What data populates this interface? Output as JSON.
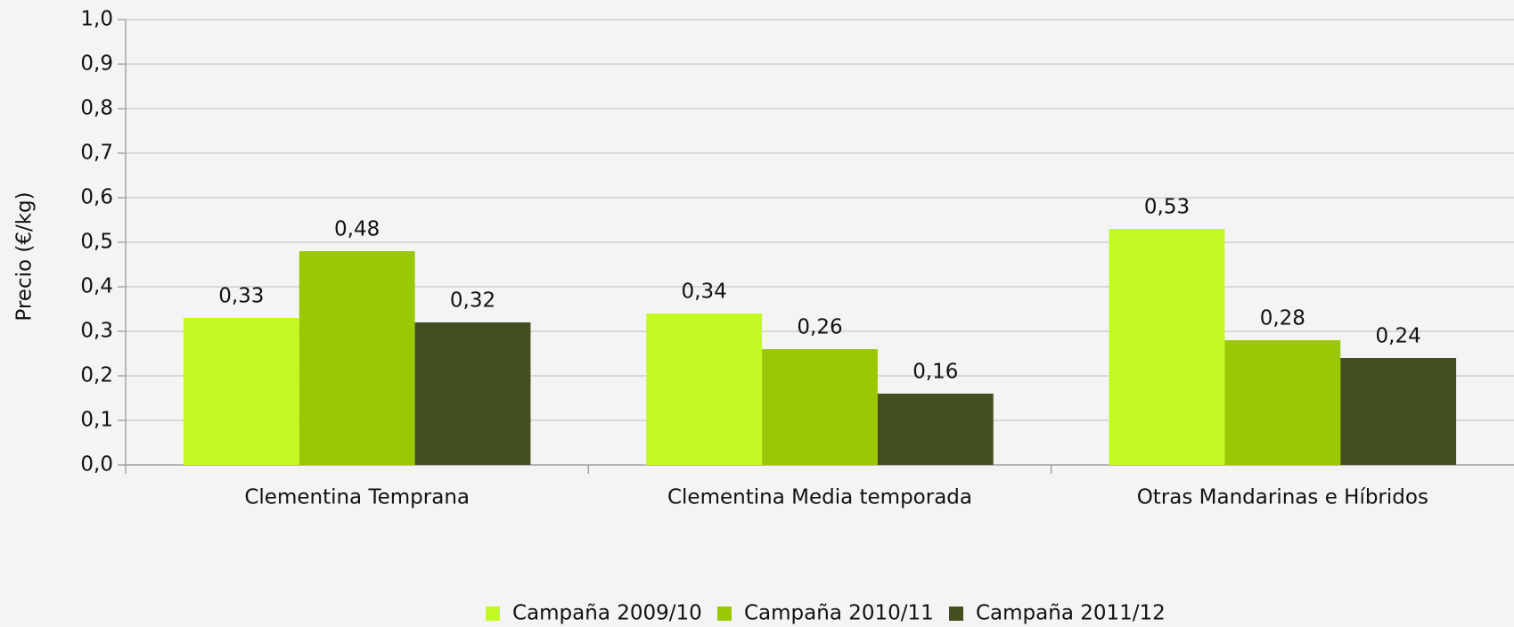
{
  "chart_data": {
    "type": "bar",
    "y_label": "Precio (€/kg)",
    "categories": [
      "Clementina Temprana",
      "Clementina Media temporada",
      "Otras Mandarinas e Híbridos"
    ],
    "series": [
      {
        "name": "Campaña 2009/10",
        "color": "#c3f923",
        "values": [
          0.33,
          0.34,
          0.53
        ],
        "value_labels": [
          "0,33",
          "0,34",
          "0,53"
        ]
      },
      {
        "name": "Campaña 2010/11",
        "color": "#9bc805",
        "values": [
          0.48,
          0.26,
          0.28
        ],
        "value_labels": [
          "0,48",
          "0,26",
          "0,28"
        ]
      },
      {
        "name": "Campaña 2011/12",
        "color": "#444f20",
        "values": [
          0.32,
          0.16,
          0.24
        ],
        "value_labels": [
          "0,32",
          "0,16",
          "0,24"
        ]
      }
    ],
    "ylim": [
      0,
      1
    ],
    "yticks": [
      {
        "value": 0,
        "label": "0,0"
      },
      {
        "value": 0.1,
        "label": "0,1"
      },
      {
        "value": 0.2,
        "label": "0,2"
      },
      {
        "value": 0.3,
        "label": "0,3"
      },
      {
        "value": 0.4,
        "label": "0,4"
      },
      {
        "value": 0.5,
        "label": "0,5"
      },
      {
        "value": 0.6,
        "label": "0,6"
      },
      {
        "value": 0.7,
        "label": "0,7"
      },
      {
        "value": 0.8,
        "label": "0,8"
      },
      {
        "value": 0.9,
        "label": "0,9"
      },
      {
        "value": 1,
        "label": "1,0"
      }
    ],
    "grid": true,
    "legend": "bottom"
  }
}
